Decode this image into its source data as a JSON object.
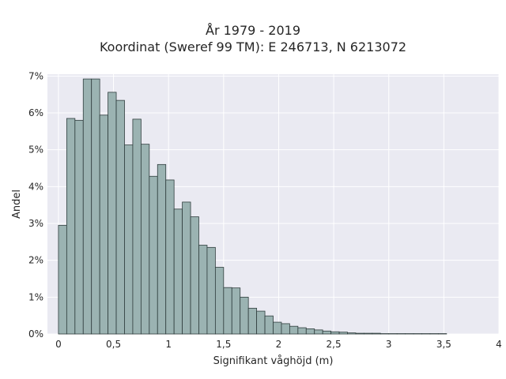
{
  "chart_data": {
    "type": "bar",
    "title_lines": [
      "År 1979 - 2019",
      "Koordinat (Sweref 99 TM): E 246713, N 6213072"
    ],
    "xlabel": "Signifikant våghöjd (m)",
    "ylabel": "Andel",
    "xlim": [
      -0.1,
      4.0
    ],
    "ylim": [
      0,
      0.0705
    ],
    "x_ticks": [
      0,
      0.5,
      1,
      1.5,
      2,
      2.5,
      3,
      3.5,
      4
    ],
    "x_tick_labels": [
      "0",
      "0,5",
      "1",
      "1,5",
      "2",
      "2,5",
      "3",
      "3,5",
      "4"
    ],
    "y_ticks": [
      0,
      0.01,
      0.02,
      0.03,
      0.04,
      0.05,
      0.06,
      0.07
    ],
    "y_tick_labels": [
      "0%",
      "1%",
      "2%",
      "3%",
      "4%",
      "5%",
      "6%",
      "7%"
    ],
    "bin_width": 0.075,
    "bin_start": 0.0,
    "values": [
      0.0295,
      0.0585,
      0.058,
      0.0692,
      0.0692,
      0.0594,
      0.0656,
      0.0634,
      0.0513,
      0.0583,
      0.0515,
      0.0428,
      0.046,
      0.0418,
      0.0339,
      0.0358,
      0.0318,
      0.0241,
      0.0235,
      0.0181,
      0.0126,
      0.0125,
      0.01,
      0.007,
      0.0062,
      0.0049,
      0.0032,
      0.0028,
      0.0021,
      0.0017,
      0.0014,
      0.0011,
      0.0008,
      0.0006,
      0.0005,
      0.0003,
      0.0002,
      0.0002,
      0.0002,
      0.0001,
      0.0001,
      0.0001,
      0.0001,
      0.0001,
      0.0001,
      0.0001,
      0.0001
    ],
    "grid": true,
    "colors": {
      "bar_fill": "#9bb3b2",
      "bar_edge": "#2f3d3d",
      "plot_background": "#eaeaf2",
      "grid": "#ffffff",
      "text": "#262626"
    }
  }
}
